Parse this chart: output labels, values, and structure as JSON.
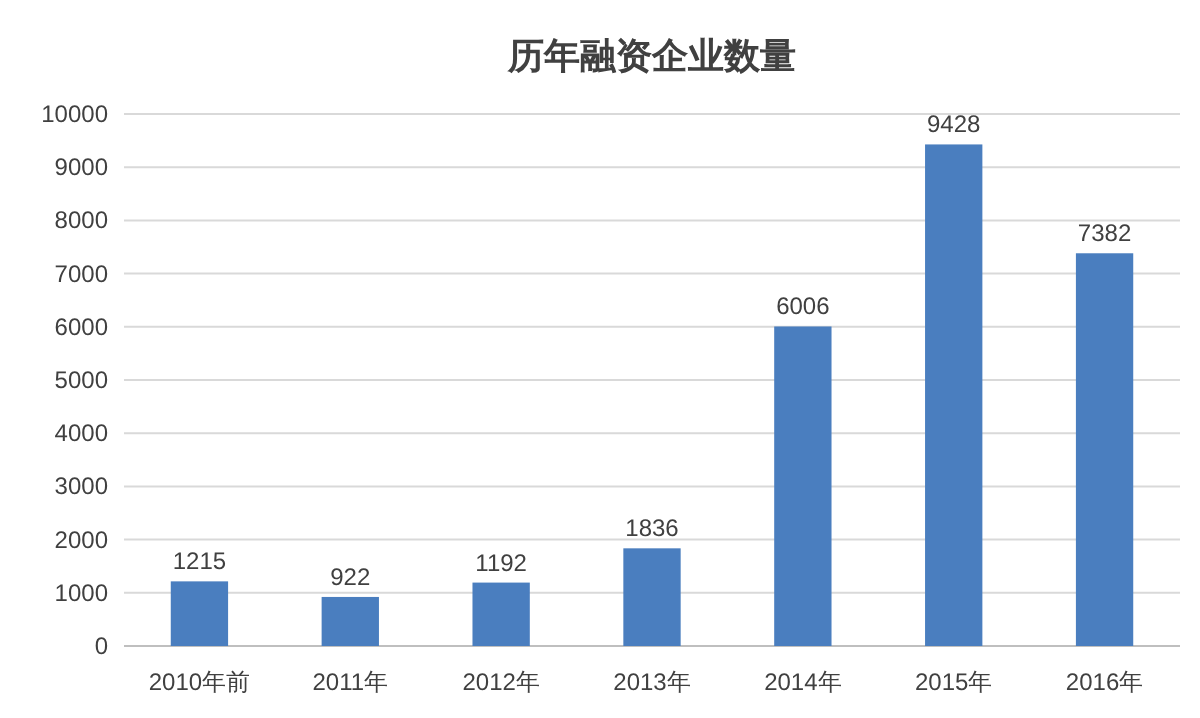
{
  "chart_data": {
    "type": "bar",
    "title": "历年融资企业数量",
    "categories": [
      "2010年前",
      "2011年",
      "2012年",
      "2013年",
      "2014年",
      "2015年",
      "2016年"
    ],
    "values": [
      1215,
      922,
      1192,
      1836,
      6006,
      9428,
      7382
    ],
    "color": "#4a7ebf",
    "ylim": [
      0,
      10000
    ],
    "yticks": [
      0,
      1000,
      2000,
      3000,
      4000,
      5000,
      6000,
      7000,
      8000,
      9000,
      10000
    ],
    "grid": "y",
    "data_labels": true
  }
}
